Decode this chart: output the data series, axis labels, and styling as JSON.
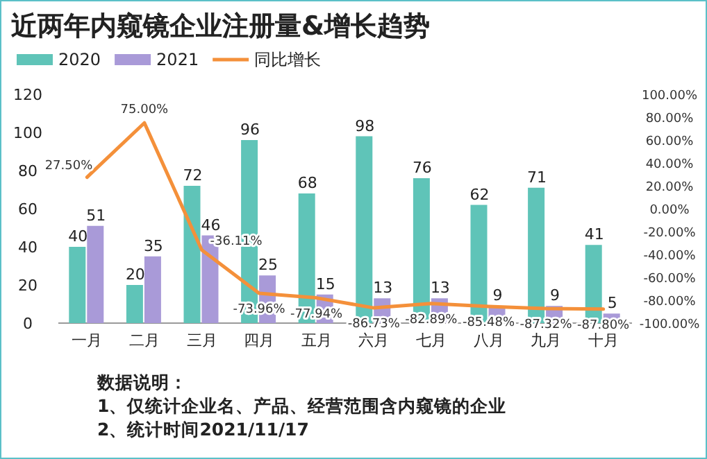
{
  "chart_data": {
    "type": "bar",
    "title": "近两年内窥镜企业注册量&增长趋势",
    "categories": [
      "一月",
      "二月",
      "三月",
      "四月",
      "五月",
      "六月",
      "七月",
      "八月",
      "九月",
      "十月"
    ],
    "series": [
      {
        "name": "2020",
        "color": "#5fc4b8",
        "values": [
          40,
          20,
          72,
          96,
          68,
          98,
          76,
          62,
          71,
          41
        ]
      },
      {
        "name": "2021",
        "color": "#a99ad8",
        "values": [
          51,
          35,
          46,
          25,
          15,
          13,
          13,
          9,
          9,
          5
        ]
      },
      {
        "name": "同比增长",
        "type": "line",
        "axis": "y2",
        "color": "#f4903a",
        "values": [
          27.5,
          75.0,
          -36.11,
          -73.96,
          -77.94,
          -86.73,
          -82.89,
          -85.48,
          -87.32,
          -87.8
        ],
        "value_labels": [
          "27.50%",
          "75.00%",
          "-36.11%",
          "-73.96%",
          "-77.94%",
          "-86.73%",
          "-82.89%",
          "-85.48%",
          "-87.32%",
          "-87.80%"
        ]
      }
    ],
    "ylim": [
      0,
      120
    ],
    "yticks": [
      0,
      20,
      40,
      60,
      80,
      100,
      120
    ],
    "y2lim": [
      -100,
      100
    ],
    "y2ticks": [
      {
        "value": 100,
        "label": "100.00%"
      },
      {
        "value": 80,
        "label": "80.00%"
      },
      {
        "value": 60,
        "label": "60.00%"
      },
      {
        "value": 40,
        "label": "40.00%"
      },
      {
        "value": 20,
        "label": "20.00%"
      },
      {
        "value": 0,
        "label": "0.00%"
      },
      {
        "value": -20,
        "label": "-20.00%"
      },
      {
        "value": -40,
        "label": "-40.00%"
      },
      {
        "value": -60,
        "label": "-60.00%"
      },
      {
        "value": -80,
        "label": "-80.00%"
      },
      {
        "value": -100,
        "label": "-100.00%"
      }
    ],
    "data_labels": true,
    "legend": "top left",
    "grid": false,
    "line_style": "solid",
    "marker": "none",
    "annotations": [
      "数据说明：",
      "1、仅统计企业名、产品、经营范围含内窥镜的企业",
      "2、统计时间2021/11/17"
    ]
  }
}
